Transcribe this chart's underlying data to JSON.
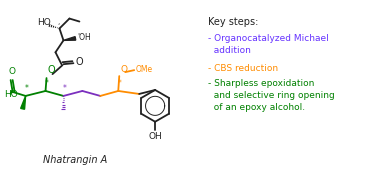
{
  "title": "Nhatrangin A",
  "key_steps_title": "Key steps:",
  "step1": "- Organocatalyzed Michael\n  addition",
  "step2": "- CBS reduction",
  "step3": "- Sharpless epoxidation\n  and selective ring opening\n  of an epoxy alcohol.",
  "color_green": "#008000",
  "color_blue": "#6633FF",
  "color_purple": "#7B2FBE",
  "color_orange": "#FF8C00",
  "color_black": "#222222",
  "bg_color": "#FFFFFF",
  "lw": 1.3
}
